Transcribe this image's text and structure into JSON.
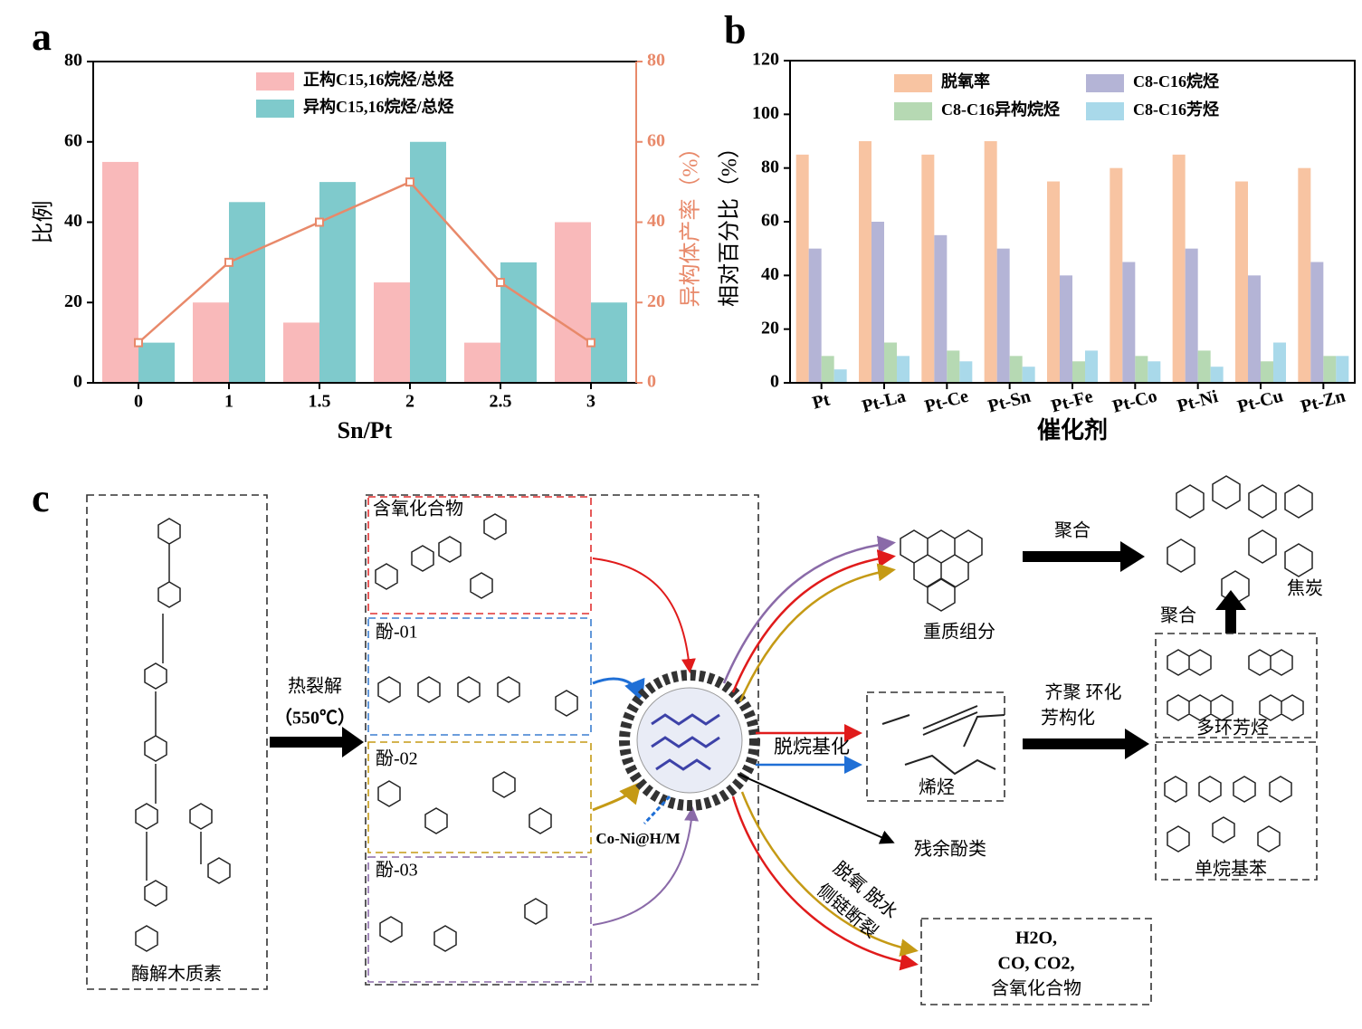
{
  "chart_data": [
    {
      "type": "bar",
      "panel": "a",
      "categories": [
        "0",
        "1",
        "1.5",
        "2",
        "2.5",
        "3"
      ],
      "series": [
        {
          "name": "正构C15,16烷烃/总烃",
          "color": "#f9b9ba",
          "values": [
            55,
            20,
            15,
            25,
            10,
            40
          ]
        },
        {
          "name": "异构C15,16烷烃/总烃",
          "color": "#7fcacc",
          "values": [
            10,
            45,
            50,
            60,
            30,
            20
          ]
        },
        {
          "type": "line",
          "axis": "y2",
          "color": "#e8896a",
          "values": [
            10,
            30,
            40,
            50,
            25,
            10
          ]
        }
      ],
      "ylabel": "比例",
      "y2label": "异构体产率（%）",
      "xlabel": "Sn/Pt",
      "ylim": [
        0,
        80
      ],
      "yticks": [
        0,
        20,
        40,
        60,
        80
      ],
      "y2lim": [
        0,
        80
      ],
      "y2ticks": [
        0,
        20,
        40,
        60,
        80
      ]
    },
    {
      "type": "bar",
      "panel": "b",
      "categories": [
        "Pt",
        "Pt-La",
        "Pt-Ce",
        "Pt-Sn",
        "Pt-Fe",
        "Pt-Co",
        "Pt-Ni",
        "Pt-Cu",
        "Pt-Zn"
      ],
      "series": [
        {
          "name": "脱氧率",
          "color": "#f8c4a2",
          "values": [
            85,
            90,
            85,
            90,
            75,
            80,
            85,
            75,
            80
          ]
        },
        {
          "name": "C8-C16烷烃",
          "color": "#b4b4d6",
          "values": [
            50,
            60,
            55,
            50,
            40,
            45,
            50,
            40,
            45
          ]
        },
        {
          "name": "C8-C16异构烷烃",
          "color": "#b6d9b3",
          "values": [
            10,
            15,
            12,
            10,
            8,
            10,
            12,
            8,
            10
          ]
        },
        {
          "name": "C8-C16芳烃",
          "color": "#a9d9ea",
          "values": [
            5,
            10,
            8,
            6,
            12,
            8,
            6,
            15,
            10
          ]
        }
      ],
      "ylabel": "相对百分比（%）",
      "xlabel": "催化剂",
      "ylim": [
        0,
        120
      ],
      "yticks": [
        0,
        20,
        40,
        60,
        80,
        100,
        120
      ]
    }
  ],
  "diagram": {
    "panel": "c",
    "lignin": "酶解木质素",
    "pyrolysis": "热裂解",
    "temperature": "（550℃）",
    "oxygenates": "含氧化合物",
    "phenol1": "酚-01",
    "phenol2": "酚-02",
    "phenol3": "酚-03",
    "catalyst": "Co-Ni@H/M",
    "heavy": "重质组分",
    "polymerize1": "聚合",
    "coke": "焦炭",
    "polymerize2": "聚合",
    "dealkylation": "脱烷基化",
    "olefins": "烯烃",
    "oligomerize": "齐聚 环化",
    "aromatize": "芳构化",
    "pah": "多环芳烃",
    "monoalkyl": "单烷基苯",
    "residual": "残余酚类",
    "deoxy": "脱氧 脱水",
    "sidechain": "侧链断裂",
    "water": "H2O,",
    "gases": "CO, CO2,",
    "oxygenates2": "含氧化合物"
  }
}
